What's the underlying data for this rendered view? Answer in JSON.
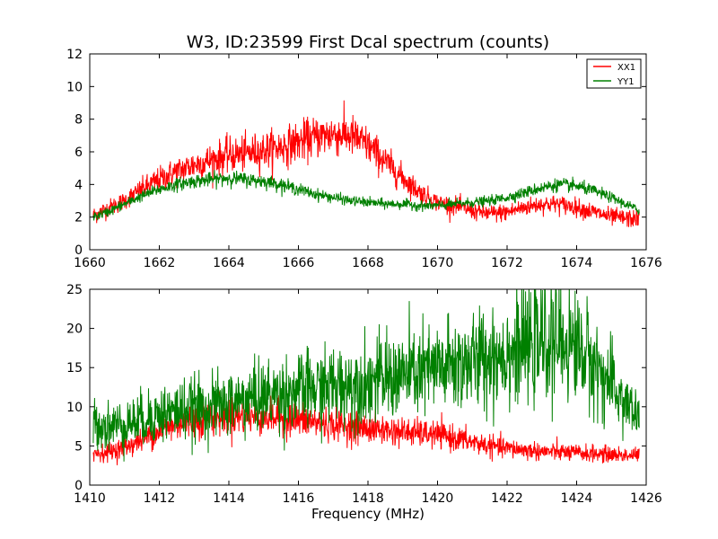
{
  "figure": {
    "title": "W3, ID:23599 First Dcal spectrum (counts)",
    "background": "#ffffff"
  },
  "chart_data": [
    {
      "type": "line",
      "title": "W3, ID:23599 First Dcal spectrum (counts)",
      "xlabel": "",
      "ylabel": "",
      "xlim": [
        1660,
        1676
      ],
      "ylim": [
        0,
        12
      ],
      "xticks": [
        1660,
        1662,
        1664,
        1666,
        1668,
        1670,
        1672,
        1674,
        1676
      ],
      "yticks": [
        0,
        2,
        4,
        6,
        8,
        10,
        12
      ],
      "legend": {
        "placement": "top-right",
        "entries": [
          "XX1",
          "YY1"
        ]
      },
      "grid": false,
      "series": [
        {
          "name": "XX1",
          "color": "#ff0000",
          "noise": 0.55,
          "x": [
            1660.1,
            1660.5,
            1661.0,
            1661.5,
            1662.0,
            1662.5,
            1663.0,
            1663.5,
            1664.0,
            1664.5,
            1665.0,
            1665.5,
            1666.0,
            1666.5,
            1667.0,
            1667.5,
            1668.0,
            1668.5,
            1669.0,
            1669.5,
            1670.0,
            1670.5,
            1671.0,
            1671.5,
            1672.0,
            1672.5,
            1673.0,
            1673.5,
            1674.0,
            1674.5,
            1675.0,
            1675.5,
            1675.8
          ],
          "y": [
            2.1,
            2.5,
            3.0,
            3.7,
            4.3,
            4.8,
            5.2,
            5.5,
            5.8,
            5.9,
            6.1,
            6.3,
            6.6,
            6.9,
            7.1,
            7.0,
            6.4,
            5.4,
            4.4,
            3.5,
            2.9,
            2.7,
            2.4,
            2.2,
            2.3,
            2.6,
            2.8,
            2.8,
            2.6,
            2.3,
            2.0,
            1.9,
            1.9
          ]
        },
        {
          "name": "YY1",
          "color": "#008000",
          "noise": 0.3,
          "x": [
            1660.1,
            1660.5,
            1661.0,
            1661.5,
            1662.0,
            1662.5,
            1663.0,
            1663.5,
            1664.0,
            1664.5,
            1665.0,
            1665.5,
            1666.0,
            1666.5,
            1667.0,
            1667.5,
            1668.0,
            1668.5,
            1669.0,
            1669.5,
            1670.0,
            1670.5,
            1671.0,
            1671.5,
            1672.0,
            1672.5,
            1673.0,
            1673.5,
            1674.0,
            1674.5,
            1675.0,
            1675.5,
            1675.8
          ],
          "y": [
            2.0,
            2.3,
            2.8,
            3.3,
            3.7,
            4.0,
            4.2,
            4.3,
            4.4,
            4.3,
            4.2,
            4.0,
            3.7,
            3.4,
            3.2,
            3.0,
            2.9,
            2.8,
            2.8,
            2.7,
            2.7,
            2.8,
            2.9,
            3.0,
            3.2,
            3.5,
            3.8,
            4.0,
            3.9,
            3.6,
            3.2,
            2.7,
            2.4
          ]
        }
      ]
    },
    {
      "type": "line",
      "title": "",
      "xlabel": "Frequency (MHz)",
      "ylabel": "",
      "xlim": [
        1410,
        1426
      ],
      "ylim": [
        0,
        25
      ],
      "xticks": [
        1410,
        1412,
        1414,
        1416,
        1418,
        1420,
        1422,
        1424,
        1426
      ],
      "yticks": [
        0,
        5,
        10,
        15,
        20,
        25
      ],
      "grid": false,
      "series": [
        {
          "name": "XX1",
          "color": "#ff0000",
          "noise": 0.8,
          "x": [
            1410.1,
            1410.5,
            1411.0,
            1411.5,
            1412.0,
            1412.5,
            1413.0,
            1413.5,
            1414.0,
            1414.5,
            1415.0,
            1415.5,
            1416.0,
            1416.5,
            1417.0,
            1417.5,
            1418.0,
            1418.5,
            1419.0,
            1419.5,
            1420.0,
            1420.5,
            1421.0,
            1421.5,
            1422.0,
            1422.5,
            1423.0,
            1423.5,
            1424.0,
            1424.5,
            1425.0,
            1425.5,
            1425.8
          ],
          "y": [
            4.0,
            4.2,
            4.8,
            5.8,
            7.0,
            7.8,
            8.3,
            8.6,
            8.8,
            8.8,
            8.7,
            8.6,
            8.3,
            8.0,
            7.7,
            7.5,
            7.2,
            7.0,
            6.8,
            6.6,
            6.4,
            6.0,
            5.5,
            5.0,
            4.7,
            4.5,
            4.3,
            4.2,
            4.1,
            4.0,
            3.9,
            3.8,
            3.8
          ]
        },
        {
          "name": "YY1",
          "color": "#008000",
          "noise": 1.2,
          "x": [
            1410.1,
            1410.5,
            1411.0,
            1411.5,
            1412.0,
            1412.5,
            1413.0,
            1413.5,
            1414.0,
            1414.5,
            1415.0,
            1415.5,
            1416.0,
            1416.5,
            1417.0,
            1417.5,
            1418.0,
            1418.5,
            1419.0,
            1419.5,
            1420.0,
            1420.5,
            1421.0,
            1421.5,
            1422.0,
            1422.5,
            1423.0,
            1423.5,
            1424.0,
            1424.5,
            1425.0,
            1425.5,
            1425.8
          ],
          "y": [
            8.0,
            7.5,
            7.8,
            8.4,
            9.0,
            9.5,
            9.8,
            10.0,
            10.4,
            10.9,
            11.3,
            11.7,
            12.0,
            12.3,
            12.6,
            12.9,
            13.2,
            13.6,
            14.0,
            14.4,
            14.8,
            15.3,
            15.8,
            16.4,
            17.0,
            17.6,
            18.2,
            18.4,
            17.8,
            15.5,
            12.5,
            10.0,
            8.5
          ]
        }
      ]
    }
  ]
}
